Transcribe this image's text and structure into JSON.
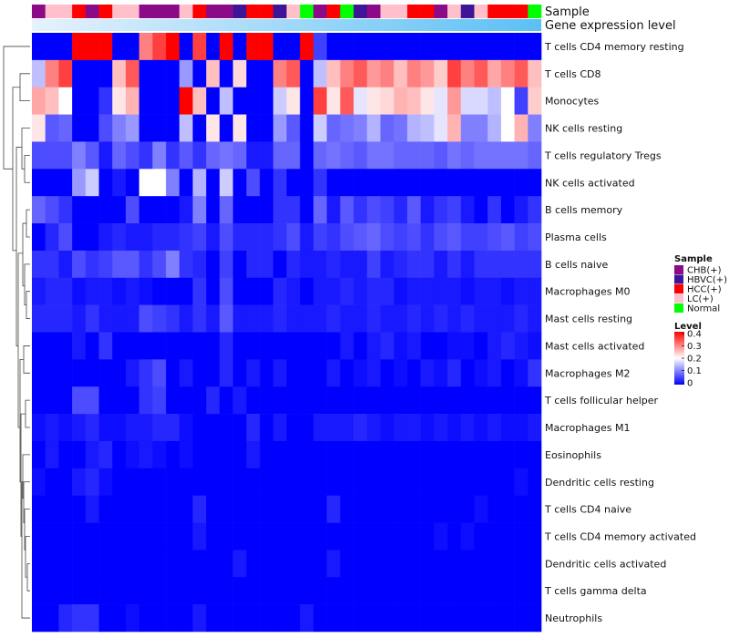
{
  "chart_data": {
    "type": "heatmap",
    "annotation_labels": [
      "Sample",
      "Gene expression level"
    ],
    "samples": [
      "CHB(+)",
      "LC(+)",
      "LC(+)",
      "HCC(+)",
      "CHB(+)",
      "HCC(+)",
      "LC(+)",
      "LC(+)",
      "CHB(+)",
      "CHB(+)",
      "CHB(+)",
      "LC(+)",
      "HCC(+)",
      "CHB(+)",
      "CHB(+)",
      "HBVC(+)",
      "HCC(+)",
      "HCC(+)",
      "HBVC(+)",
      "LC(+)",
      "Normal",
      "CHB(+)",
      "HCC(+)",
      "Normal",
      "HBVC(+)",
      "CHB(+)",
      "LC(+)",
      "LC(+)",
      "HCC(+)",
      "HCC(+)",
      "CHB(+)",
      "LC(+)",
      "HBVC(+)",
      "LC(+)",
      "HCC(+)",
      "HCC(+)",
      "HCC(+)",
      "Normal"
    ],
    "rows": [
      "T cells CD4 memory resting",
      "T cells CD8",
      "Monocytes",
      "NK cells resting",
      "T cells regulatory  Tregs",
      "NK cells activated",
      "B cells memory",
      "Plasma cells",
      "B cells naive",
      "Macrophages M0",
      "Mast cells resting",
      "Mast cells activated",
      "Macrophages M2",
      "T cells follicular helper",
      "Macrophages M1",
      "Eosinophils",
      "Dendritic cells resting",
      "T cells CD4 naive",
      "T cells CD4 memory activated",
      "Dendritic cells activated",
      "T cells gamma delta",
      "Neutrophils"
    ],
    "values": [
      [
        0,
        0,
        0,
        0.4,
        0.4,
        0.4,
        0,
        0,
        0.3,
        0.35,
        0.4,
        0,
        0.35,
        0,
        0.4,
        0,
        0.4,
        0.4,
        0,
        0,
        0.4,
        0.05,
        0,
        0,
        0,
        0,
        0,
        0,
        0,
        0,
        0,
        0,
        0,
        0,
        0,
        0,
        0,
        0
      ],
      [
        0.15,
        0.3,
        0.35,
        0,
        0,
        0,
        0.25,
        0.33,
        0,
        0,
        0,
        0.12,
        0,
        0.25,
        0,
        0.23,
        0,
        0,
        0.3,
        0.33,
        0,
        0.15,
        0.25,
        0.3,
        0.33,
        0.28,
        0.3,
        0.25,
        0.3,
        0.28,
        0.24,
        0.35,
        0.3,
        0.33,
        0.27,
        0.3,
        0.33,
        0.25
      ],
      [
        0.27,
        0.25,
        0.2,
        0,
        0,
        0.04,
        0.22,
        0.26,
        0,
        0,
        0,
        0.4,
        0.25,
        0,
        0.15,
        0,
        0,
        0,
        0.16,
        0.22,
        0,
        0.35,
        0.22,
        0.33,
        0.18,
        0.22,
        0.23,
        0.26,
        0.25,
        0.22,
        0.18,
        0.28,
        0.17,
        0.17,
        0.15,
        0.2,
        0.05,
        0.24
      ],
      [
        0.22,
        0.07,
        0.08,
        0,
        0,
        0.06,
        0.1,
        0.12,
        0,
        0,
        0,
        0.15,
        0,
        0.22,
        0,
        0.22,
        0,
        0,
        0.12,
        0.07,
        0,
        0.16,
        0.08,
        0.09,
        0.1,
        0.14,
        0.08,
        0.09,
        0.14,
        0.15,
        0.18,
        0.26,
        0.1,
        0.1,
        0.14,
        0.2,
        0.26,
        0.1
      ],
      [
        0.06,
        0.06,
        0.06,
        0.1,
        0.07,
        0.02,
        0.08,
        0.06,
        0.04,
        0.1,
        0.04,
        0.07,
        0.04,
        0.08,
        0.09,
        0.08,
        0.02,
        0.02,
        0.08,
        0.08,
        0,
        0.08,
        0.09,
        0.08,
        0.07,
        0.09,
        0.09,
        0.08,
        0.08,
        0.08,
        0.07,
        0.09,
        0.08,
        0.09,
        0.09,
        0.09,
        0.09,
        0.08
      ],
      [
        0,
        0,
        0,
        0.12,
        0.16,
        0,
        0.02,
        0,
        0.2,
        0.2,
        0.1,
        0,
        0.14,
        0,
        0.16,
        0,
        0.06,
        0,
        0.04,
        0,
        0,
        0.04,
        0,
        0,
        0,
        0,
        0,
        0,
        0,
        0,
        0,
        0,
        0,
        0,
        0,
        0,
        0,
        0
      ],
      [
        0.08,
        0.06,
        0.04,
        0,
        0,
        0,
        0,
        0.06,
        0,
        0,
        0,
        0.02,
        0.1,
        0,
        0.08,
        0,
        0,
        0,
        0.04,
        0.04,
        0,
        0.08,
        0.02,
        0.07,
        0.04,
        0.06,
        0.05,
        0.03,
        0.07,
        0.02,
        0.04,
        0.05,
        0.02,
        0,
        0.04,
        0,
        0.02,
        0.04
      ],
      [
        0,
        0.03,
        0.06,
        0,
        0,
        0.02,
        0.03,
        0.02,
        0.02,
        0.03,
        0.03,
        0.04,
        0.05,
        0.02,
        0.06,
        0.03,
        0.03,
        0.03,
        0.04,
        0.06,
        0.02,
        0.05,
        0.04,
        0.06,
        0.07,
        0.08,
        0.06,
        0.05,
        0.06,
        0.04,
        0.06,
        0.07,
        0.05,
        0.05,
        0.06,
        0.07,
        0.05,
        0.06
      ],
      [
        0.04,
        0.04,
        0.02,
        0.06,
        0.04,
        0.05,
        0.07,
        0.07,
        0.04,
        0.06,
        0.1,
        0.04,
        0.03,
        0,
        0.05,
        0,
        0.03,
        0.03,
        0,
        0.03,
        0.02,
        0.02,
        0.03,
        0.02,
        0.02,
        0.05,
        0.02,
        0.03,
        0.04,
        0.04,
        0.02,
        0.04,
        0.02,
        0.04,
        0.04,
        0.04,
        0.04,
        0.04
      ],
      [
        0.02,
        0.03,
        0.03,
        0.01,
        0.02,
        0.02,
        0.01,
        0.02,
        0.01,
        0,
        0,
        0,
        0.04,
        0,
        0.06,
        0,
        0,
        0,
        0.03,
        0.02,
        0,
        0.02,
        0.02,
        0.03,
        0.02,
        0.03,
        0.03,
        0.01,
        0.02,
        0.02,
        0.02,
        0.02,
        0.01,
        0.02,
        0.02,
        0.01,
        0.02,
        0.02
      ],
      [
        0.03,
        0.03,
        0.03,
        0.02,
        0.04,
        0.02,
        0.02,
        0.02,
        0.06,
        0.05,
        0.04,
        0.02,
        0.04,
        0.02,
        0.07,
        0.02,
        0.02,
        0.02,
        0.03,
        0.02,
        0.02,
        0.02,
        0.03,
        0.02,
        0.02,
        0.03,
        0.02,
        0.02,
        0.03,
        0.02,
        0.03,
        0.02,
        0.03,
        0.02,
        0.02,
        0.02,
        0.03,
        0.02
      ],
      [
        0,
        0,
        0,
        0.02,
        0,
        0.04,
        0,
        0,
        0,
        0,
        0,
        0,
        0,
        0,
        0.03,
        0,
        0,
        0,
        0,
        0,
        0,
        0,
        0,
        0.02,
        0,
        0.02,
        0.03,
        0.01,
        0.02,
        0,
        0,
        0.01,
        0.01,
        0,
        0.02,
        0.03,
        0.02,
        0.01
      ],
      [
        0,
        0,
        0,
        0,
        0,
        0,
        0,
        0.02,
        0.04,
        0.06,
        0,
        0.02,
        0,
        0,
        0.03,
        0,
        0.02,
        0,
        0.02,
        0,
        0,
        0,
        0.02,
        0,
        0.01,
        0.02,
        0,
        0.01,
        0,
        0.02,
        0.01,
        0.03,
        0,
        0.01,
        0.02,
        0,
        0.01,
        0.04
      ],
      [
        0,
        0,
        0,
        0.06,
        0.06,
        0,
        0,
        0,
        0.04,
        0.05,
        0,
        0,
        0,
        0.03,
        0,
        0.02,
        0,
        0,
        0,
        0,
        0,
        0,
        0,
        0,
        0,
        0,
        0,
        0,
        0,
        0,
        0,
        0,
        0,
        0,
        0,
        0,
        0,
        0
      ],
      [
        0.01,
        0.02,
        0.01,
        0.02,
        0.03,
        0.01,
        0.01,
        0.02,
        0.02,
        0.03,
        0.03,
        0.01,
        0,
        0,
        0,
        0,
        0.03,
        0,
        0.02,
        0,
        0,
        0.02,
        0.02,
        0.02,
        0.03,
        0.02,
        0.01,
        0.02,
        0.02,
        0.01,
        0.02,
        0.01,
        0.02,
        0.01,
        0.02,
        0.01,
        0.01,
        0.02
      ],
      [
        0,
        0.02,
        0,
        0,
        0.02,
        0.03,
        0,
        0.01,
        0.02,
        0.01,
        0,
        0.01,
        0,
        0,
        0,
        0,
        0.02,
        0,
        0,
        0,
        0,
        0,
        0,
        0,
        0,
        0,
        0,
        0,
        0,
        0,
        0,
        0,
        0,
        0,
        0,
        0,
        0,
        0
      ],
      [
        0.01,
        0,
        0,
        0.02,
        0.03,
        0.01,
        0,
        0,
        0,
        0,
        0,
        0,
        0,
        0,
        0,
        0,
        0,
        0,
        0,
        0,
        0,
        0,
        0,
        0,
        0,
        0,
        0,
        0,
        0,
        0,
        0,
        0,
        0,
        0,
        0,
        0,
        0.01,
        0
      ],
      [
        0,
        0,
        0,
        0,
        0.02,
        0,
        0,
        0,
        0,
        0,
        0,
        0,
        0.03,
        0,
        0,
        0,
        0,
        0,
        0,
        0,
        0,
        0,
        0.03,
        0,
        0,
        0,
        0,
        0,
        0,
        0,
        0,
        0,
        0,
        0.01,
        0,
        0,
        0,
        0
      ],
      [
        0,
        0,
        0,
        0,
        0,
        0,
        0,
        0,
        0,
        0,
        0,
        0,
        0.02,
        0,
        0,
        0,
        0,
        0,
        0,
        0,
        0,
        0,
        0,
        0,
        0,
        0,
        0,
        0,
        0,
        0,
        0.01,
        0,
        0.01,
        0,
        0,
        0,
        0,
        0
      ],
      [
        0,
        0,
        0,
        0,
        0,
        0,
        0,
        0,
        0,
        0,
        0,
        0,
        0,
        0,
        0,
        0.02,
        0,
        0,
        0,
        0,
        0,
        0,
        0.02,
        0,
        0,
        0,
        0,
        0,
        0,
        0,
        0,
        0,
        0,
        0,
        0,
        0,
        0,
        0
      ],
      [
        0,
        0,
        0,
        0,
        0,
        0,
        0,
        0,
        0,
        0,
        0,
        0,
        0,
        0,
        0,
        0,
        0,
        0,
        0,
        0,
        0,
        0,
        0,
        0,
        0,
        0,
        0,
        0,
        0,
        0,
        0,
        0,
        0,
        0,
        0,
        0,
        0,
        0
      ],
      [
        0,
        0,
        0.03,
        0.04,
        0.04,
        0,
        0,
        0.01,
        0,
        0,
        0,
        0,
        0.02,
        0,
        0,
        0,
        0,
        0,
        0,
        0,
        0.02,
        0,
        0,
        0,
        0,
        0,
        0,
        0,
        0,
        0,
        0,
        0,
        0,
        0,
        0,
        0,
        0,
        0
      ]
    ],
    "legend_sample": {
      "title": "Sample",
      "entries": [
        {
          "label": "CHB(+)",
          "color": "#8B0A87"
        },
        {
          "label": "HBVC(+)",
          "color": "#3E1596"
        },
        {
          "label": "HCC(+)",
          "color": "#FF0000"
        },
        {
          "label": "LC(+)",
          "color": "#FFC0CB"
        },
        {
          "label": "Normal",
          "color": "#00FF00"
        }
      ]
    },
    "legend_level": {
      "title": "Level",
      "ticks": [
        "0.4",
        "0.3",
        "0.2",
        "0.1",
        "0"
      ],
      "range": [
        0,
        0.4
      ]
    },
    "colors": {
      "low": "#0000FF",
      "mid": "#FFFFFF",
      "high": "#FF0000",
      "level_band_left": "#E6F2FC",
      "level_band_right": "#5BC0F5"
    }
  }
}
